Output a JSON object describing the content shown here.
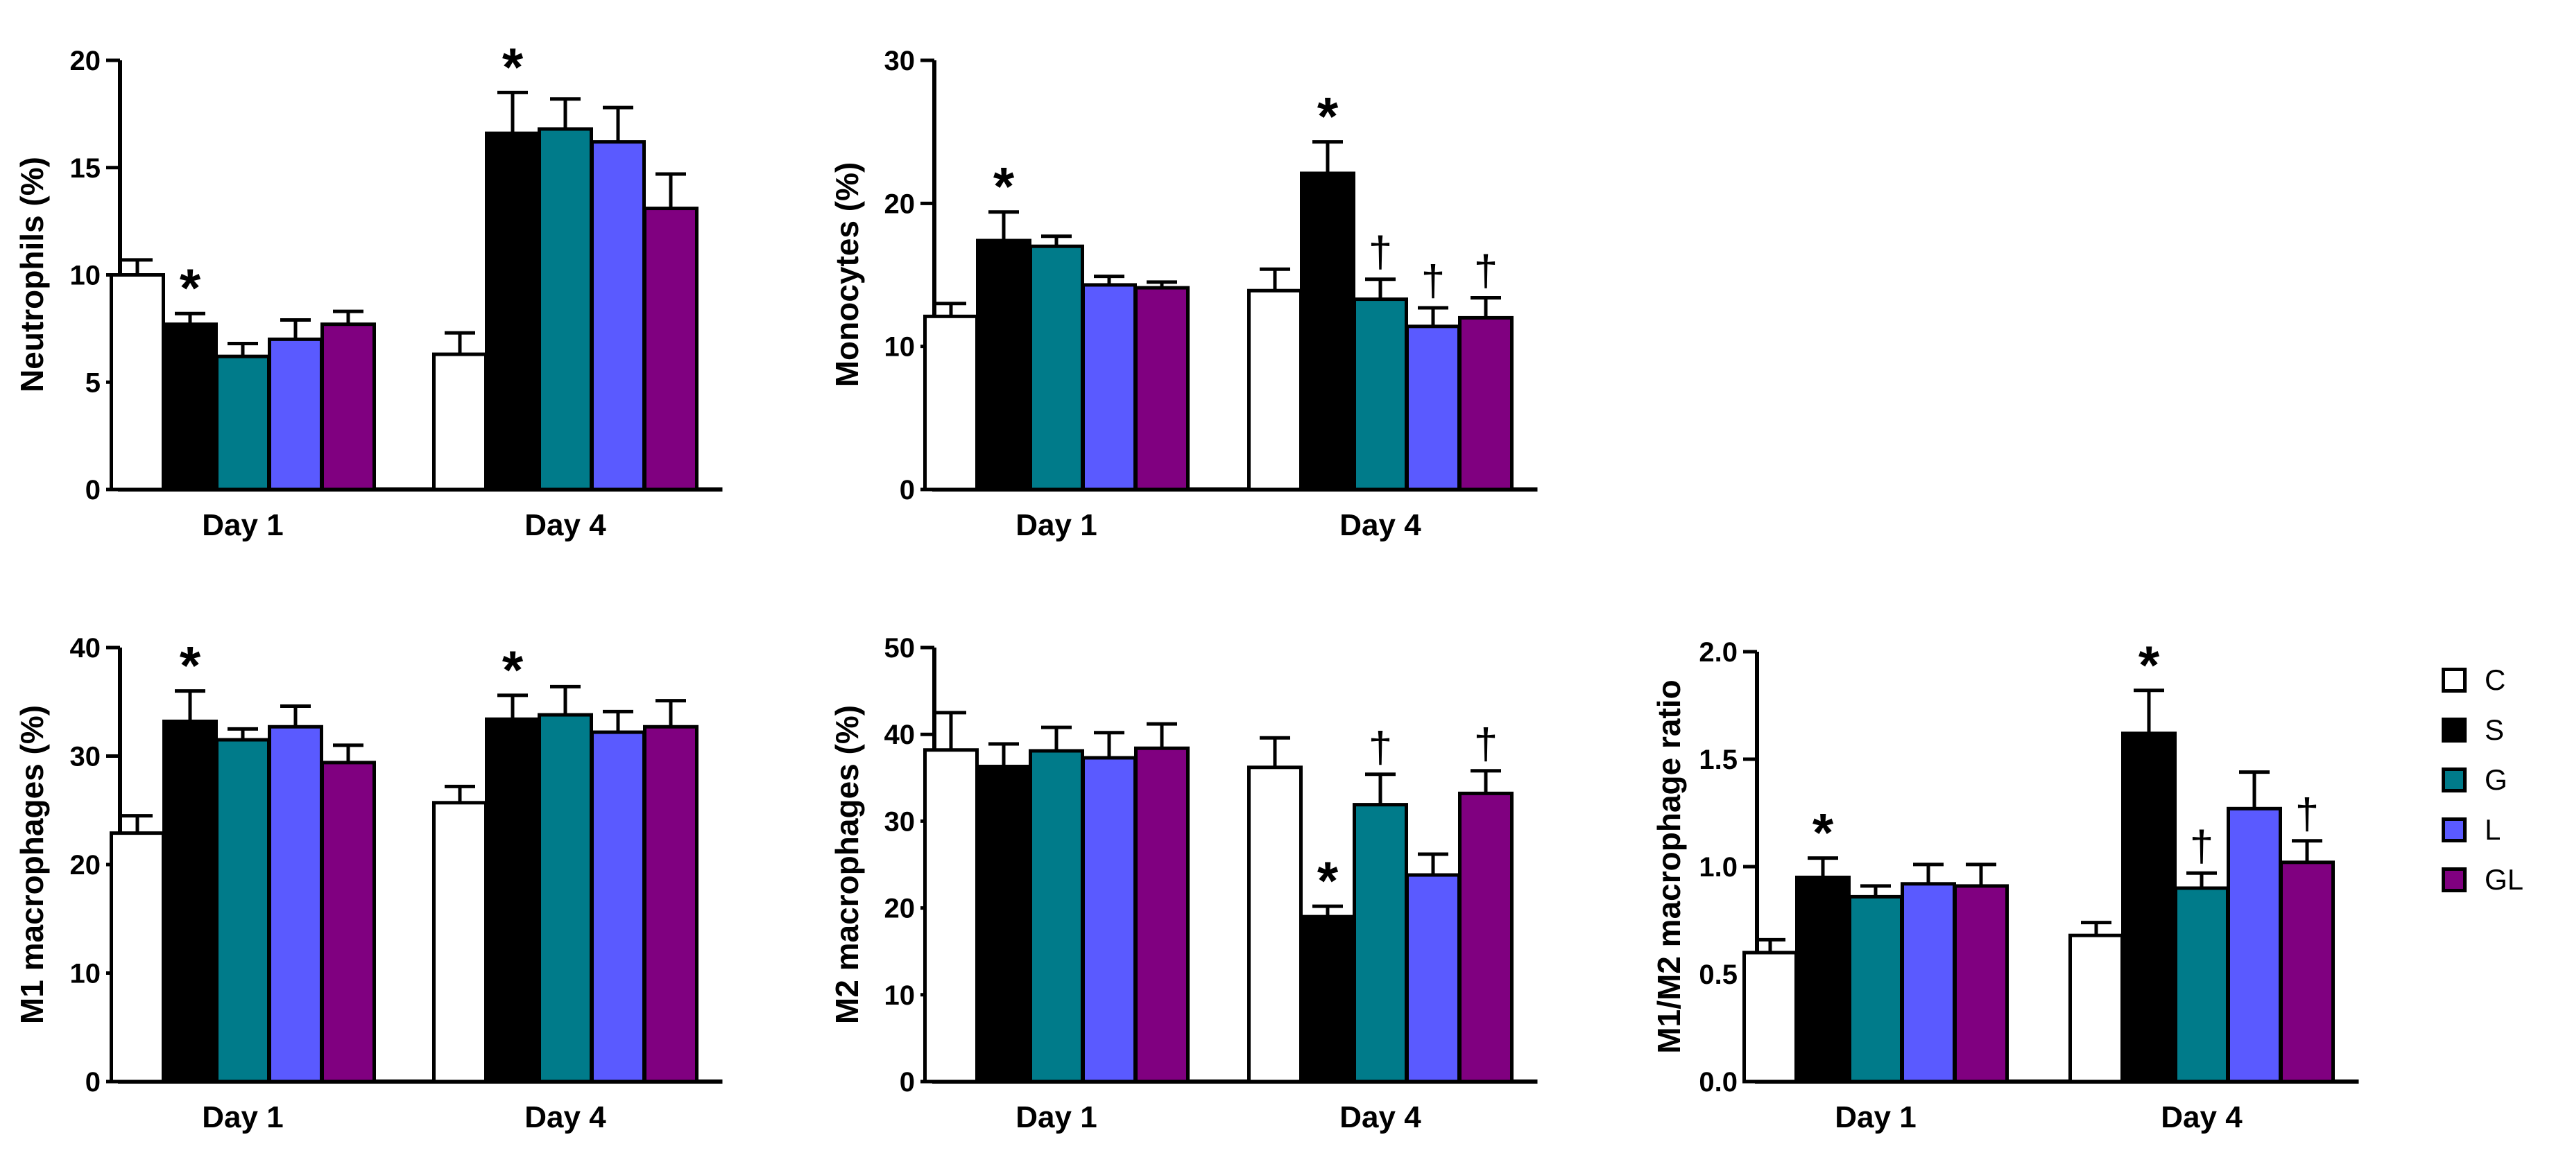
{
  "legend": {
    "items": [
      {
        "label": "C",
        "color": "#ffffff"
      },
      {
        "label": "S",
        "color": "#000000"
      },
      {
        "label": "G",
        "color": "#007b8a"
      },
      {
        "label": "L",
        "color": "#5a5aff"
      },
      {
        "label": "GL",
        "color": "#800080"
      }
    ]
  },
  "chart_data": [
    {
      "type": "bar",
      "categories": [
        "Day 1",
        "Day 4"
      ],
      "ylabel": "Neutrophils (%)",
      "ylim": [
        0,
        20
      ],
      "yticks": [
        "0",
        "5",
        "10",
        "15",
        "20"
      ],
      "series": [
        {
          "name": "C",
          "values": [
            10.0,
            6.3
          ],
          "errors": [
            0.7,
            1.0
          ],
          "marks": [
            "",
            ""
          ]
        },
        {
          "name": "S",
          "values": [
            7.7,
            16.6
          ],
          "errors": [
            0.5,
            1.9
          ],
          "marks": [
            "*",
            "*"
          ]
        },
        {
          "name": "G",
          "values": [
            6.2,
            16.8
          ],
          "errors": [
            0.6,
            1.4
          ],
          "marks": [
            "",
            ""
          ]
        },
        {
          "name": "L",
          "values": [
            7.0,
            16.2
          ],
          "errors": [
            0.9,
            1.6
          ],
          "marks": [
            "",
            ""
          ]
        },
        {
          "name": "GL",
          "values": [
            7.7,
            13.1
          ],
          "errors": [
            0.6,
            1.6
          ],
          "marks": [
            "",
            ""
          ]
        }
      ]
    },
    {
      "type": "bar",
      "categories": [
        "Day 1",
        "Day 4"
      ],
      "ylabel": "Monocytes (%)",
      "ylim": [
        0,
        30
      ],
      "yticks": [
        "0",
        "10",
        "20",
        "30"
      ],
      "series": [
        {
          "name": "C",
          "values": [
            12.1,
            13.9
          ],
          "errors": [
            0.9,
            1.5
          ],
          "marks": [
            "",
            ""
          ]
        },
        {
          "name": "S",
          "values": [
            17.4,
            22.1
          ],
          "errors": [
            2.0,
            2.2
          ],
          "marks": [
            "*",
            "*"
          ]
        },
        {
          "name": "G",
          "values": [
            17.0,
            13.3
          ],
          "errors": [
            0.7,
            1.4
          ],
          "marks": [
            "",
            "†"
          ]
        },
        {
          "name": "L",
          "values": [
            14.3,
            11.4
          ],
          "errors": [
            0.6,
            1.3
          ],
          "marks": [
            "",
            "†"
          ]
        },
        {
          "name": "GL",
          "values": [
            14.1,
            12.0
          ],
          "errors": [
            0.4,
            1.4
          ],
          "marks": [
            "",
            "†"
          ]
        }
      ]
    },
    {
      "type": "bar",
      "categories": [
        "Day 1",
        "Day 4"
      ],
      "ylabel": "M1 macrophages (%)",
      "ylim": [
        0,
        40
      ],
      "yticks": [
        "0",
        "10",
        "20",
        "30",
        "40"
      ],
      "series": [
        {
          "name": "C",
          "values": [
            22.9,
            25.7
          ],
          "errors": [
            1.6,
            1.5
          ],
          "marks": [
            "",
            ""
          ]
        },
        {
          "name": "S",
          "values": [
            33.2,
            33.4
          ],
          "errors": [
            2.8,
            2.2
          ],
          "marks": [
            "*",
            "*"
          ]
        },
        {
          "name": "G",
          "values": [
            31.5,
            33.8
          ],
          "errors": [
            1.0,
            2.6
          ],
          "marks": [
            "",
            ""
          ]
        },
        {
          "name": "L",
          "values": [
            32.7,
            32.2
          ],
          "errors": [
            1.9,
            1.9
          ],
          "marks": [
            "",
            ""
          ]
        },
        {
          "name": "GL",
          "values": [
            29.4,
            32.7
          ],
          "errors": [
            1.6,
            2.4
          ],
          "marks": [
            "",
            ""
          ]
        }
      ]
    },
    {
      "type": "bar",
      "categories": [
        "Day 1",
        "Day 4"
      ],
      "ylabel": "M2 macrophages (%)",
      "ylim": [
        0,
        50
      ],
      "yticks": [
        "0",
        "10",
        "20",
        "30",
        "40",
        "50"
      ],
      "series": [
        {
          "name": "C",
          "values": [
            38.2,
            36.2
          ],
          "errors": [
            4.3,
            3.4
          ],
          "marks": [
            "",
            ""
          ]
        },
        {
          "name": "S",
          "values": [
            36.3,
            19.0
          ],
          "errors": [
            2.6,
            1.2
          ],
          "marks": [
            "",
            "*"
          ]
        },
        {
          "name": "G",
          "values": [
            38.1,
            31.9
          ],
          "errors": [
            2.7,
            3.5
          ],
          "marks": [
            "",
            "†"
          ]
        },
        {
          "name": "L",
          "values": [
            37.3,
            23.8
          ],
          "errors": [
            2.9,
            2.4
          ],
          "marks": [
            "",
            ""
          ]
        },
        {
          "name": "GL",
          "values": [
            38.4,
            33.2
          ],
          "errors": [
            2.8,
            2.6
          ],
          "marks": [
            "",
            "†"
          ]
        }
      ]
    },
    {
      "type": "bar",
      "categories": [
        "Day 1",
        "Day 4"
      ],
      "ylabel": "M1/M2 macrophage ratio",
      "ylim": [
        0,
        2.0
      ],
      "yticks": [
        "0.0",
        "0.5",
        "1.0",
        "1.5",
        "2.0"
      ],
      "series": [
        {
          "name": "C",
          "values": [
            0.6,
            0.68
          ],
          "errors": [
            0.06,
            0.06
          ],
          "marks": [
            "",
            ""
          ]
        },
        {
          "name": "S",
          "values": [
            0.95,
            1.62
          ],
          "errors": [
            0.09,
            0.2
          ],
          "marks": [
            "*",
            "*"
          ]
        },
        {
          "name": "G",
          "values": [
            0.86,
            0.9
          ],
          "errors": [
            0.05,
            0.07
          ],
          "marks": [
            "",
            "†"
          ]
        },
        {
          "name": "L",
          "values": [
            0.92,
            1.27
          ],
          "errors": [
            0.09,
            0.17
          ],
          "marks": [
            "",
            ""
          ]
        },
        {
          "name": "GL",
          "values": [
            0.91,
            1.02
          ],
          "errors": [
            0.1,
            0.1
          ],
          "marks": [
            "",
            "†"
          ]
        }
      ]
    }
  ]
}
